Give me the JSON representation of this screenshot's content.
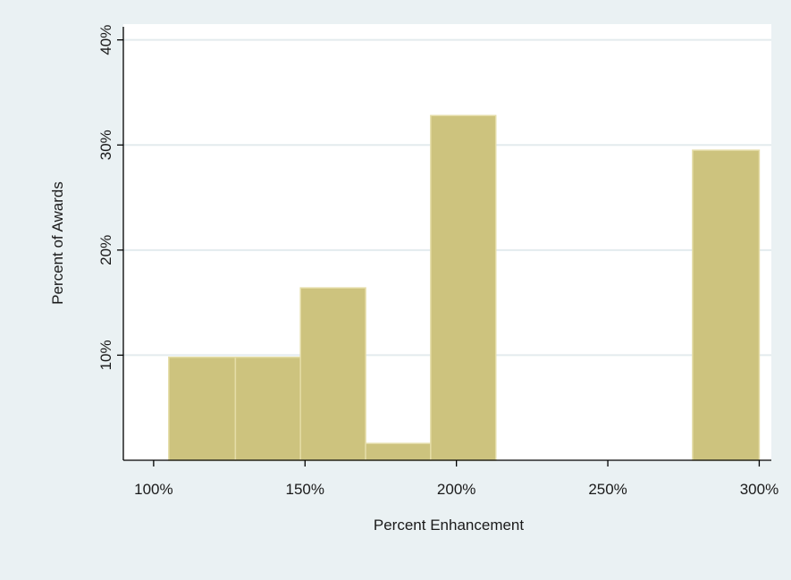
{
  "chart_data": {
    "type": "bar",
    "title": "",
    "xlabel": "Percent Enhancement",
    "ylabel": "Percent of Awards",
    "x_ticks": [
      {
        "value": 100,
        "label": "100%"
      },
      {
        "value": 150,
        "label": "150%"
      },
      {
        "value": 200,
        "label": "200%"
      },
      {
        "value": 250,
        "label": "250%"
      },
      {
        "value": 300,
        "label": "300%"
      }
    ],
    "y_ticks": [
      {
        "value": 10,
        "label": "10%"
      },
      {
        "value": 20,
        "label": "20%"
      },
      {
        "value": 30,
        "label": "30%"
      },
      {
        "value": 40,
        "label": "40%"
      }
    ],
    "xlim": [
      90,
      304
    ],
    "ylim": [
      0,
      41.5
    ],
    "grid": true,
    "bins": [
      {
        "x0": 105,
        "x1": 127,
        "value": 9.8
      },
      {
        "x0": 127,
        "x1": 148.5,
        "value": 9.8
      },
      {
        "x0": 148.5,
        "x1": 170,
        "value": 16.4
      },
      {
        "x0": 170,
        "x1": 191.5,
        "value": 1.6
      },
      {
        "x0": 191.5,
        "x1": 213,
        "value": 32.8
      },
      {
        "x0": 278,
        "x1": 300,
        "value": 29.5
      }
    ],
    "colors": {
      "bar_fill": "#cdc37e",
      "bar_edge": "#e4dca6",
      "plot_background": "#ffffff",
      "outer_background": "#eaf1f3",
      "gridline": "#e3ebee",
      "axis": "#000000"
    }
  }
}
